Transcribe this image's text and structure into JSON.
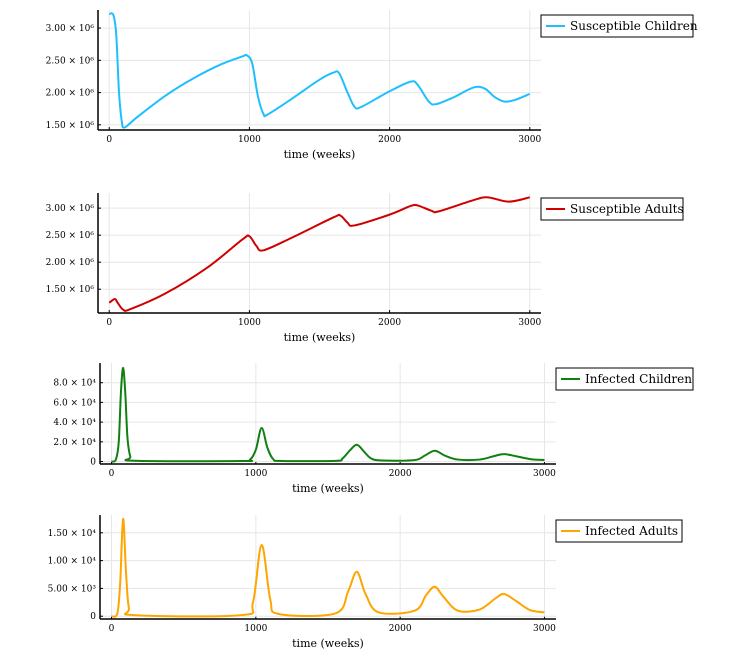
{
  "chart_data": [
    {
      "type": "line",
      "title": "",
      "xlabel": "time (weeks)",
      "ylabel": "",
      "xlim": [
        -80,
        3080
      ],
      "ylim": [
        1420000.0,
        3280000.0
      ],
      "xticks": [
        0,
        1000,
        2000,
        3000
      ],
      "xtick_labels": [
        "0",
        "1000",
        "2000",
        "3000"
      ],
      "yticks": [
        1500000.0,
        2000000.0,
        2500000.0,
        3000000.0
      ],
      "ytick_labels": [
        "1.50 × 10⁶",
        "2.00 × 10⁶",
        "2.50 × 10⁶",
        "3.00 × 10⁶"
      ],
      "grid": true,
      "legend_position": "top-right-outside",
      "series": [
        {
          "name": "Susceptible Children",
          "color": "#1fbfff",
          "x": [
            0,
            30,
            50,
            70,
            90,
            110,
            200,
            400,
            600,
            800,
            950,
            980,
            1020,
            1060,
            1100,
            1130,
            1300,
            1500,
            1600,
            1640,
            1700,
            1750,
            1800,
            2000,
            2150,
            2200,
            2280,
            2330,
            2450,
            2600,
            2680,
            2750,
            2820,
            2900,
            3000
          ],
          "y": [
            3220000.0,
            3200000.0,
            2900000.0,
            2000000.0,
            1550000.0,
            1460000.0,
            1620000.0,
            1950000.0,
            2220000.0,
            2440000.0,
            2560000.0,
            2580000.0,
            2450000.0,
            1950000.0,
            1670000.0,
            1660000.0,
            1900000.0,
            2200000.0,
            2310000.0,
            2300000.0,
            2000000.0,
            1780000.0,
            1780000.0,
            2020000.0,
            2170000.0,
            2120000.0,
            1860000.0,
            1820000.0,
            1920000.0,
            2080000.0,
            2060000.0,
            1930000.0,
            1860000.0,
            1890000.0,
            1980000.0
          ]
        }
      ]
    },
    {
      "type": "line",
      "title": "",
      "xlabel": "time (weeks)",
      "ylabel": "",
      "xlim": [
        -80,
        3080
      ],
      "ylim": [
        1060000.0,
        3280000.0
      ],
      "xticks": [
        0,
        1000,
        2000,
        3000
      ],
      "xtick_labels": [
        "0",
        "1000",
        "2000",
        "3000"
      ],
      "yticks": [
        1500000.0,
        2000000.0,
        2500000.0,
        3000000.0
      ],
      "ytick_labels": [
        "1.50 × 10⁶",
        "2.00 × 10⁶",
        "2.50 × 10⁶",
        "3.00 × 10⁶"
      ],
      "grid": true,
      "legend_position": "top-right-outside",
      "series": [
        {
          "name": "Susceptible Adults",
          "color": "#d00000",
          "x": [
            0,
            40,
            60,
            100,
            150,
            400,
            700,
            950,
            1000,
            1050,
            1100,
            1300,
            1600,
            1650,
            1700,
            1750,
            2000,
            2150,
            2200,
            2300,
            2350,
            2600,
            2700,
            2850,
            3000
          ],
          "y": [
            1250000.0,
            1320000.0,
            1250000.0,
            1120000.0,
            1130000.0,
            1420000.0,
            1900000.0,
            2420000.0,
            2480000.0,
            2300000.0,
            2220000.0,
            2450000.0,
            2830000.0,
            2860000.0,
            2730000.0,
            2680000.0,
            2880000.0,
            3040000.0,
            3050000.0,
            2950000.0,
            2940000.0,
            3150000.0,
            3200000.0,
            3120000.0,
            3200000.0
          ]
        }
      ]
    },
    {
      "type": "line",
      "title": "",
      "xlabel": "time (weeks)",
      "ylabel": "",
      "xlim": [
        -80,
        3080
      ],
      "ylim": [
        -2500,
        100000.0
      ],
      "xticks": [
        0,
        1000,
        2000,
        3000
      ],
      "xtick_labels": [
        "0",
        "1000",
        "2000",
        "3000"
      ],
      "yticks": [
        0,
        20000,
        40000,
        60000,
        80000
      ],
      "ytick_labels": [
        "0",
        "2.0 × 10⁴",
        "4.0 × 10⁴",
        "6.0 × 10⁴",
        "8.0 × 10⁴"
      ],
      "grid": true,
      "legend_position": "top-right-outside",
      "series": [
        {
          "name": "Infected Children",
          "color": "#108010",
          "x": [
            0,
            30,
            50,
            65,
            80,
            95,
            110,
            130,
            160,
            900,
            960,
            1000,
            1040,
            1080,
            1120,
            1180,
            1550,
            1600,
            1650,
            1700,
            1750,
            1800,
            1880,
            2100,
            2170,
            2240,
            2310,
            2400,
            2550,
            2650,
            2720,
            2800,
            2900,
            3000
          ],
          "y": [
            0,
            2000,
            20000,
            70000,
            95000,
            70000,
            25000,
            5000,
            800,
            500,
            2000,
            12000,
            34000,
            14000,
            2500,
            600,
            700,
            3000,
            11000,
            17000,
            10000,
            3000,
            1000,
            1500,
            6000,
            11000,
            6000,
            2000,
            2000,
            5500,
            7500,
            5500,
            2500,
            1500
          ]
        }
      ]
    },
    {
      "type": "line",
      "title": "",
      "xlabel": "time (weeks)",
      "ylabel": "",
      "xlim": [
        -80,
        3080
      ],
      "ylim": [
        -500,
        18200.0
      ],
      "xticks": [
        0,
        1000,
        2000,
        3000
      ],
      "xtick_labels": [
        "0",
        "1000",
        "2000",
        "3000"
      ],
      "yticks": [
        0,
        5000,
        10000,
        15000
      ],
      "ytick_labels": [
        "0",
        "5.00 × 10³",
        "1.00 × 10⁴",
        "1.50 × 10⁴"
      ],
      "grid": true,
      "legend_position": "top-right-outside",
      "series": [
        {
          "name": "Infected Adults",
          "color": "#ffa500",
          "x": [
            0,
            40,
            60,
            80,
            100,
            120,
            160,
            900,
            980,
            1040,
            1100,
            1160,
            1550,
            1640,
            1700,
            1760,
            1850,
            2100,
            2180,
            2240,
            2300,
            2400,
            2550,
            2660,
            2720,
            2800,
            2900,
            3000
          ],
          "y": [
            0,
            500,
            6000,
            17500,
            8000,
            1500,
            200,
            200,
            2500,
            12800,
            3000,
            400,
            500,
            4500,
            8000,
            4000,
            700,
            1000,
            3800,
            5300,
            3500,
            1000,
            1200,
            3200,
            4000,
            2800,
            1100,
            700
          ]
        }
      ]
    }
  ]
}
